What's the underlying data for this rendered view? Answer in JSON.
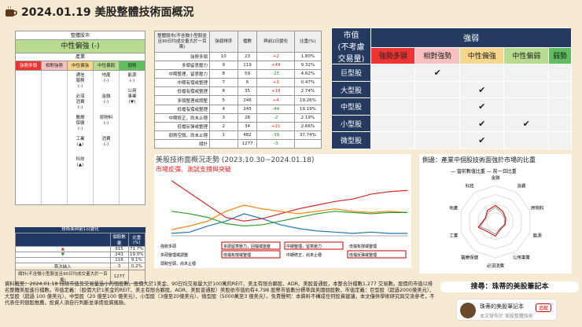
{
  "title": "2024.01.19 美股整體技術面概況",
  "left": {
    "header": "整體股市",
    "level": "中性偏強 (-)",
    "industry": "產業",
    "cats": [
      "強勢多頭",
      "相對強勢",
      "中性偏強",
      "中性偏弱",
      "弱勢"
    ],
    "col3": [
      "通信\n服務\n(-)",
      "必須\n消費\n(-)",
      "醫療\n保健\n(-)",
      "工業\n(▲)",
      "科技\n(▲)"
    ],
    "col4": [
      "地產\n(-)",
      "金融\n(-)",
      "原物料\n(-)",
      "消費\n(-)"
    ],
    "col5": [
      "能源\n(-)",
      "公用\n事業\n(▼)"
    ]
  },
  "table2": {
    "headers": [
      "整體股市(不含微小型股並且90日均成交量大於一百萬)",
      "強弱排序",
      "檔數",
      "與前1日變化",
      "比重(%)"
    ],
    "rows": [
      [
        "強勢多頭",
        "10",
        "23",
        "+2",
        "1.80%"
      ],
      [
        "多頭留意壓力",
        "9",
        "119",
        "+49",
        "9.32%"
      ],
      [
        "中期整理，留意壓力",
        "8",
        "59",
        "-15",
        "4.62%"
      ],
      [
        "中期有撐或整理",
        "7",
        "6",
        "+3",
        "0.47%"
      ],
      [
        "低檔有撐或整理",
        "6",
        "35",
        "+18",
        "2.74%"
      ],
      [
        "多頭整理或調整",
        "5",
        "246",
        "+4",
        "19.26%"
      ],
      [
        "低檔有撐或整理",
        "4",
        "245",
        "-44",
        "19.19%"
      ],
      [
        "中期修正，尚未止穩",
        "3",
        "28",
        "-2",
        "2.19%"
      ],
      [
        "低檔反彈或整理",
        "2",
        "34",
        "+21",
        "2.66%"
      ],
      [
        "弱勢空頭，尚未止穩",
        "1",
        "482",
        "-39",
        "37.74%"
      ],
      [
        "總計",
        "",
        "1277",
        "-3",
        ""
      ]
    ]
  },
  "matrix": {
    "head": "市值\n(不考慮\n交易量)",
    "strength": "強弱",
    "cols": [
      "強勢多頭",
      "相對強勢",
      "中性偏強",
      "中性偏弱",
      "弱勢"
    ],
    "rows": [
      {
        "name": "巨型股",
        "checks": [
          false,
          true,
          false,
          false,
          false
        ]
      },
      {
        "name": "大型股",
        "checks": [
          false,
          false,
          true,
          false,
          false
        ]
      },
      {
        "name": "中型股",
        "checks": [
          false,
          false,
          true,
          false,
          false
        ]
      },
      {
        "name": "小型股",
        "checks": [
          false,
          false,
          true,
          true,
          false
        ]
      },
      {
        "name": "微型股",
        "checks": [
          false,
          false,
          true,
          false,
          false
        ]
      }
    ],
    "check": "✔"
  },
  "daily": {
    "label": "技術面與前1日變化",
    "headers": [
      "",
      "個股數量",
      "比重(%)"
    ],
    "rows": [
      [
        "▲",
        "915",
        "71.7%"
      ],
      [
        "▼",
        "243",
        "19.0%"
      ],
      [
        "-",
        "116",
        "9.1%"
      ],
      [
        "首次納入",
        "3",
        "0.2%"
      ],
      [
        "總計(不含微小型股並且90日均成交量大於一百萬)",
        "1277",
        ""
      ]
    ]
  },
  "chart": {
    "title": "美股技術面概況走勢 (2023.10.30~2024.01.18)",
    "subtitle": "市場反彈、測試支撐與突破",
    "legend": [
      "強勢多頭",
      "多頭留意壓力，回檔或盤整",
      "中期整理，留意壓力",
      "低檔有撐或整理",
      "多頭整理或調整",
      "低檔有撐或整理",
      "中期修正，尚未止穩",
      "低檔反彈或整理",
      "弱勢空頭，尚未止穩"
    ]
  },
  "chart_data": {
    "type": "line",
    "title": "美股技術面概況走勢 (2023.10.30~2024.01.18)",
    "series": [
      {
        "name": "強勢多頭",
        "values": [
          2,
          3,
          8,
          12,
          18,
          14,
          9,
          6,
          4,
          3,
          2,
          3,
          2,
          2
        ],
        "color": "#1f77b4"
      },
      {
        "name": "弱勢空頭，尚未止穩",
        "values": [
          45,
          35,
          25,
          15,
          12,
          14,
          18,
          22,
          25,
          28,
          30,
          34,
          36,
          37
        ],
        "color": "#d62728"
      },
      {
        "name": "多頭整理或調整",
        "values": [
          5,
          8,
          12,
          20,
          25,
          22,
          20,
          18,
          20,
          22,
          20,
          19,
          20,
          19
        ],
        "color": "#ff7f0e"
      },
      {
        "name": "低檔有撐或整理",
        "values": [
          20,
          18,
          15,
          10,
          8,
          9,
          12,
          15,
          18,
          20,
          19,
          18,
          19,
          19
        ],
        "color": "#2ca02c"
      }
    ]
  },
  "radar": {
    "title": "側邊：產業中個股技術面強於市場的比重",
    "legend": [
      "當前數值比重",
      "前一日比重"
    ],
    "axes": [
      "金融",
      "消費",
      "原物料",
      "能源",
      "公用事業",
      "必須消費",
      "醫療保健",
      "工業",
      "地產",
      "科技"
    ],
    "current": [
      0.45,
      0.35,
      0.3,
      0.28,
      0.25,
      0.4,
      0.35,
      0.5,
      0.3,
      0.38
    ],
    "prev": [
      0.4,
      0.3,
      0.28,
      0.26,
      0.22,
      0.35,
      0.3,
      0.45,
      0.28,
      0.33
    ]
  },
  "footnote": "資料截至：2024.01.18 排除市值及交易量過小的個股數。股價大於1美金、90日均交易量大於100萬的REIT、美主有限合夥股、ADR、美股普通股，本整合計檔數1,277 交易數。股價的市值以排名整體美股進行檔數。市值定義：（股價大於1美金的REIT、美主有限合夥股、ADR、美股普通股）美股依市值約有4,798 股票市值劃分標準與美國個股數，市值定義：巨型股（超過2000億美元）、大型股（超過 100 億美元）、中型股（20 億至100 億美元）、小型股（3億至20億美元）、微型股（5000萬至3 億美元）。免責聲明：本資料不構成任何投資建議，本文僅供學術研究與交流參考，不代表任何個股推薦，投資人須自行判斷並承擔投資風險。",
  "search": "搜尋：珠蒂的美股筆記本",
  "card": {
    "name": "珠蒂的美股筆記本",
    "sub": "本文發布於 美股整體技術",
    "follow": "追蹤"
  }
}
